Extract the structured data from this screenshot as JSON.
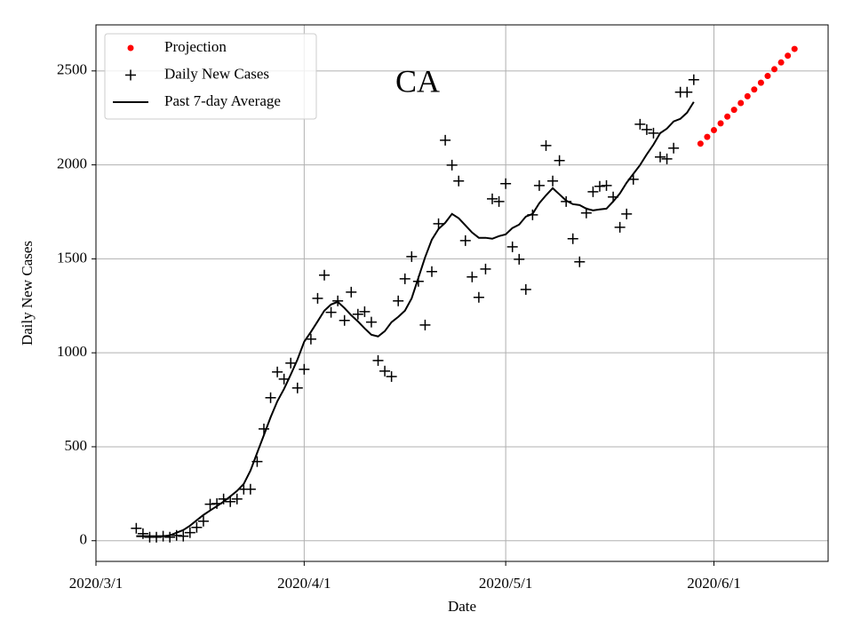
{
  "chart_data": {
    "type": "line",
    "title": "CA",
    "x_label": "Date",
    "y_label": "Daily New Cases",
    "xlim": [
      "2020/3/1",
      "2020/6/18"
    ],
    "xticks": [
      "2020/3/1",
      "2020/4/1",
      "2020/5/1",
      "2020/6/1"
    ],
    "ylim": [
      -110,
      2745
    ],
    "yticks": [
      0,
      500,
      1000,
      1500,
      2000,
      2500
    ],
    "grid": true,
    "legend": "upper left",
    "series": [
      {
        "name": "Projection",
        "color": "#ff0000",
        "style": "dot",
        "x": [
          "2020/5/30",
          "2020/5/31",
          "2020/6/1",
          "2020/6/2",
          "2020/6/3",
          "2020/6/4",
          "2020/6/5",
          "2020/6/6",
          "2020/6/7",
          "2020/6/8",
          "2020/6/9",
          "2020/6/10",
          "2020/6/11",
          "2020/6/12",
          "2020/6/13"
        ],
        "values": [
          2113,
          2149,
          2185,
          2221,
          2257,
          2293,
          2329,
          2365,
          2401,
          2437,
          2473,
          2509,
          2545,
          2581,
          2617
        ]
      },
      {
        "name": "Daily New Cases",
        "color": "#000000",
        "style": "plus",
        "x": [
          "2020/3/7",
          "2020/3/8",
          "2020/3/9",
          "2020/3/10",
          "2020/3/11",
          "2020/3/12",
          "2020/3/13",
          "2020/3/14",
          "2020/3/15",
          "2020/3/16",
          "2020/3/17",
          "2020/3/18",
          "2020/3/19",
          "2020/3/20",
          "2020/3/21",
          "2020/3/22",
          "2020/3/23",
          "2020/3/24",
          "2020/3/25",
          "2020/3/26",
          "2020/3/27",
          "2020/3/28",
          "2020/3/29",
          "2020/3/30",
          "2020/3/31",
          "2020/4/1",
          "2020/4/2",
          "2020/4/3",
          "2020/4/4",
          "2020/4/5",
          "2020/4/6",
          "2020/4/7",
          "2020/4/8",
          "2020/4/9",
          "2020/4/10",
          "2020/4/11",
          "2020/4/12",
          "2020/4/13",
          "2020/4/14",
          "2020/4/15",
          "2020/4/16",
          "2020/4/17",
          "2020/4/18",
          "2020/4/19",
          "2020/4/20",
          "2020/4/21",
          "2020/4/22",
          "2020/4/23",
          "2020/4/24",
          "2020/4/25",
          "2020/4/26",
          "2020/4/27",
          "2020/4/28",
          "2020/4/29",
          "2020/4/30",
          "2020/5/1",
          "2020/5/2",
          "2020/5/3",
          "2020/5/4",
          "2020/5/5",
          "2020/5/6",
          "2020/5/7",
          "2020/5/8",
          "2020/5/9",
          "2020/5/10",
          "2020/5/11",
          "2020/5/12",
          "2020/5/13",
          "2020/5/14",
          "2020/5/15",
          "2020/5/16",
          "2020/5/17",
          "2020/5/18",
          "2020/5/19",
          "2020/5/20",
          "2020/5/21",
          "2020/5/22",
          "2020/5/23",
          "2020/5/24",
          "2020/5/25",
          "2020/5/26",
          "2020/5/27",
          "2020/5/28",
          "2020/5/29"
        ],
        "values": [
          66,
          38,
          19,
          19,
          24,
          19,
          28,
          24,
          43,
          71,
          104,
          194,
          198,
          222,
          208,
          222,
          274,
          274,
          421,
          595,
          761,
          898,
          860,
          945,
          813,
          912,
          1073,
          1290,
          1413,
          1215,
          1276,
          1172,
          1323,
          1205,
          1219,
          1163,
          959,
          903,
          874,
          1276,
          1394,
          1512,
          1380,
          1148,
          1432,
          1687,
          2131,
          1999,
          1914,
          1597,
          1404,
          1295,
          1446,
          1819,
          1805,
          1900,
          1564,
          1498,
          1337,
          1734,
          1890,
          2103,
          1914,
          2023,
          1805,
          1607,
          1484,
          1744,
          1857,
          1886,
          1890,
          1829,
          1668,
          1739,
          1923,
          2216,
          2188,
          2169,
          2042,
          2032,
          2089,
          2387,
          2387,
          2453
        ]
      },
      {
        "name": "Past 7-day Average",
        "color": "#000000",
        "style": "line",
        "x": [
          "2020/3/7",
          "2020/3/8",
          "2020/3/9",
          "2020/3/10",
          "2020/3/11",
          "2020/3/12",
          "2020/3/13",
          "2020/3/14",
          "2020/3/15",
          "2020/3/16",
          "2020/3/17",
          "2020/3/18",
          "2020/3/19",
          "2020/3/20",
          "2020/3/21",
          "2020/3/22",
          "2020/3/23",
          "2020/3/24",
          "2020/3/25",
          "2020/3/26",
          "2020/3/27",
          "2020/3/28",
          "2020/3/29",
          "2020/3/30",
          "2020/3/31",
          "2020/4/1",
          "2020/4/2",
          "2020/4/3",
          "2020/4/4",
          "2020/4/5",
          "2020/4/6",
          "2020/4/7",
          "2020/4/8",
          "2020/4/9",
          "2020/4/10",
          "2020/4/11",
          "2020/4/12",
          "2020/4/13",
          "2020/4/14",
          "2020/4/15",
          "2020/4/16",
          "2020/4/17",
          "2020/4/18",
          "2020/4/19",
          "2020/4/20",
          "2020/4/21",
          "2020/4/22",
          "2020/4/23",
          "2020/4/24",
          "2020/4/25",
          "2020/4/26",
          "2020/4/27",
          "2020/4/28",
          "2020/4/29",
          "2020/4/30",
          "2020/5/1",
          "2020/5/2",
          "2020/5/3",
          "2020/5/4",
          "2020/5/5",
          "2020/5/6",
          "2020/5/7",
          "2020/5/8",
          "2020/5/9",
          "2020/5/10",
          "2020/5/11",
          "2020/5/12",
          "2020/5/13",
          "2020/5/14",
          "2020/5/15",
          "2020/5/16",
          "2020/5/17",
          "2020/5/18",
          "2020/5/19",
          "2020/5/20",
          "2020/5/21",
          "2020/5/22",
          "2020/5/23",
          "2020/5/24",
          "2020/5/25",
          "2020/5/26",
          "2020/5/27",
          "2020/5/28",
          "2020/5/29"
        ],
        "values": [
          24,
          24,
          24,
          24,
          24,
          28,
          43,
          57,
          80,
          109,
          137,
          161,
          184,
          208,
          236,
          265,
          302,
          373,
          468,
          562,
          657,
          742,
          808,
          884,
          964,
          1059,
          1111,
          1167,
          1224,
          1257,
          1271,
          1238,
          1200,
          1167,
          1130,
          1096,
          1087,
          1115,
          1163,
          1191,
          1224,
          1290,
          1399,
          1508,
          1602,
          1659,
          1692,
          1739,
          1716,
          1678,
          1640,
          1612,
          1612,
          1607,
          1621,
          1630,
          1664,
          1682,
          1725,
          1739,
          1796,
          1838,
          1876,
          1843,
          1810,
          1791,
          1786,
          1767,
          1758,
          1763,
          1767,
          1805,
          1848,
          1905,
          1952,
          1999,
          2056,
          2108,
          2169,
          2193,
          2231,
          2245,
          2278,
          2335
        ]
      }
    ]
  }
}
